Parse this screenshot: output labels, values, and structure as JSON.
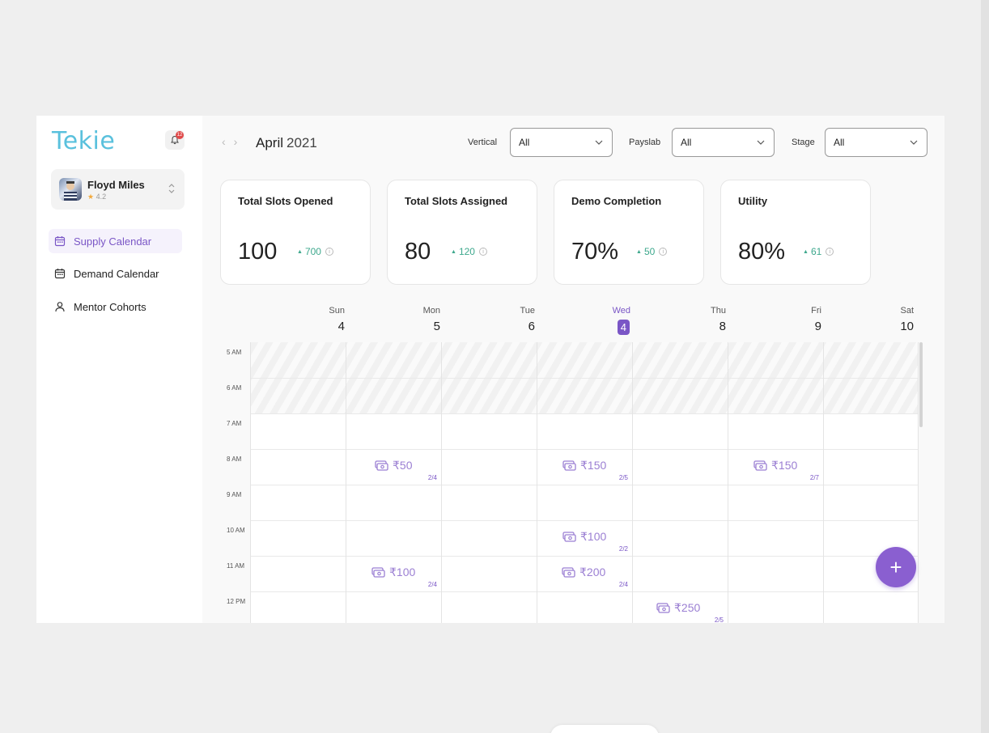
{
  "app": {
    "logo": "Tekie",
    "notification_count": "12"
  },
  "user": {
    "name": "Floyd Miles",
    "rating": "4.2"
  },
  "sidebar": {
    "items": [
      {
        "label": "Supply Calendar",
        "icon": "calendar-icon",
        "active": true
      },
      {
        "label": "Demand Calendar",
        "icon": "calendar-icon",
        "active": false
      },
      {
        "label": "Mentor Cohorts",
        "icon": "user-icon",
        "active": false
      }
    ]
  },
  "header": {
    "month": "April",
    "year": "2021",
    "filters": [
      {
        "label": "Vertical",
        "value": "All"
      },
      {
        "label": "Payslab",
        "value": "All"
      },
      {
        "label": "Stage",
        "value": "All"
      }
    ]
  },
  "stats": [
    {
      "title": "Total Slots Opened",
      "value": "100",
      "delta": "700"
    },
    {
      "title": "Total Slots Assigned",
      "value": "80",
      "delta": "120"
    },
    {
      "title": "Demo Completion",
      "value": "70%",
      "delta": "50"
    },
    {
      "title": "Utility",
      "value": "80%",
      "delta": "61"
    }
  ],
  "calendar": {
    "days": [
      {
        "name": "Sun",
        "num": "4"
      },
      {
        "name": "Mon",
        "num": "5"
      },
      {
        "name": "Tue",
        "num": "6"
      },
      {
        "name": "Wed",
        "num": "4"
      },
      {
        "name": "Thu",
        "num": "8"
      },
      {
        "name": "Fri",
        "num": "9"
      },
      {
        "name": "Sat",
        "num": "10"
      }
    ],
    "times": [
      "5 AM",
      "6 AM",
      "7 AM",
      "8 AM",
      "9 AM",
      "10 AM",
      "11 AM",
      "12 PM"
    ],
    "slots": [
      {
        "amount": "₹50",
        "count": "2/4"
      },
      {
        "amount": "₹150",
        "count": "2/5"
      },
      {
        "amount": "₹150",
        "count": "2/7"
      },
      {
        "amount": "₹100",
        "count": "2/2"
      },
      {
        "amount": "₹100",
        "count": "2/4"
      },
      {
        "amount": "₹200",
        "count": "2/4"
      },
      {
        "amount": "₹250",
        "count": "2/5"
      }
    ]
  },
  "fab": {
    "label": "+"
  },
  "colors": {
    "accent": "#7a56c6",
    "logo": "#5ac1dd",
    "positive": "#3ea88d"
  }
}
